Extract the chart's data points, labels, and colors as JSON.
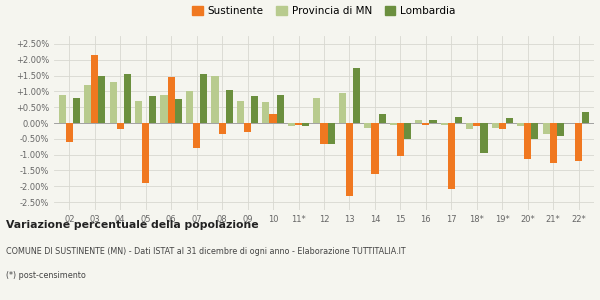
{
  "years": [
    "02",
    "03",
    "04",
    "05",
    "06",
    "07",
    "08",
    "09",
    "10",
    "11*",
    "12",
    "13",
    "14",
    "15",
    "16",
    "17",
    "18*",
    "19*",
    "20*",
    "21*",
    "22*"
  ],
  "sustinente": [
    -0.6,
    2.15,
    -0.2,
    -1.9,
    1.45,
    -0.8,
    -0.35,
    -0.3,
    0.27,
    -0.05,
    -0.65,
    -2.3,
    -1.6,
    -1.05,
    -0.05,
    -2.1,
    -0.1,
    -0.2,
    -1.15,
    -1.25,
    -1.2
  ],
  "provincia": [
    0.9,
    1.2,
    1.3,
    0.7,
    0.9,
    1.0,
    1.5,
    0.7,
    0.65,
    -0.1,
    0.8,
    0.95,
    -0.15,
    -0.05,
    0.1,
    -0.05,
    -0.2,
    -0.15,
    -0.1,
    -0.35,
    0.0
  ],
  "lombardia": [
    0.8,
    1.5,
    1.55,
    0.85,
    0.75,
    1.55,
    1.05,
    0.85,
    0.9,
    -0.1,
    -0.65,
    1.75,
    0.27,
    -0.5,
    0.1,
    0.2,
    -0.95,
    0.15,
    -0.5,
    -0.4,
    0.35
  ],
  "color_sustinente": "#f07820",
  "color_provincia": "#b8cb8e",
  "color_lombardia": "#6b8f3e",
  "bg_color": "#f5f5ef",
  "grid_color": "#d8d8d0",
  "title_bold": "Variazione percentuale della popolazione",
  "subtitle": "COMUNE DI SUSTINENTE (MN) - Dati ISTAT al 31 dicembre di ogni anno - Elaborazione TUTTITALIA.IT",
  "footnote": "(*) post-censimento",
  "legend_labels": [
    "Sustinente",
    "Provincia di MN",
    "Lombardia"
  ],
  "ylim": [
    -2.75,
    2.75
  ],
  "yticks": [
    -2.5,
    -2.0,
    -1.5,
    -1.0,
    -0.5,
    0.0,
    0.5,
    1.0,
    1.5,
    2.0,
    2.5
  ],
  "bar_width": 0.28
}
